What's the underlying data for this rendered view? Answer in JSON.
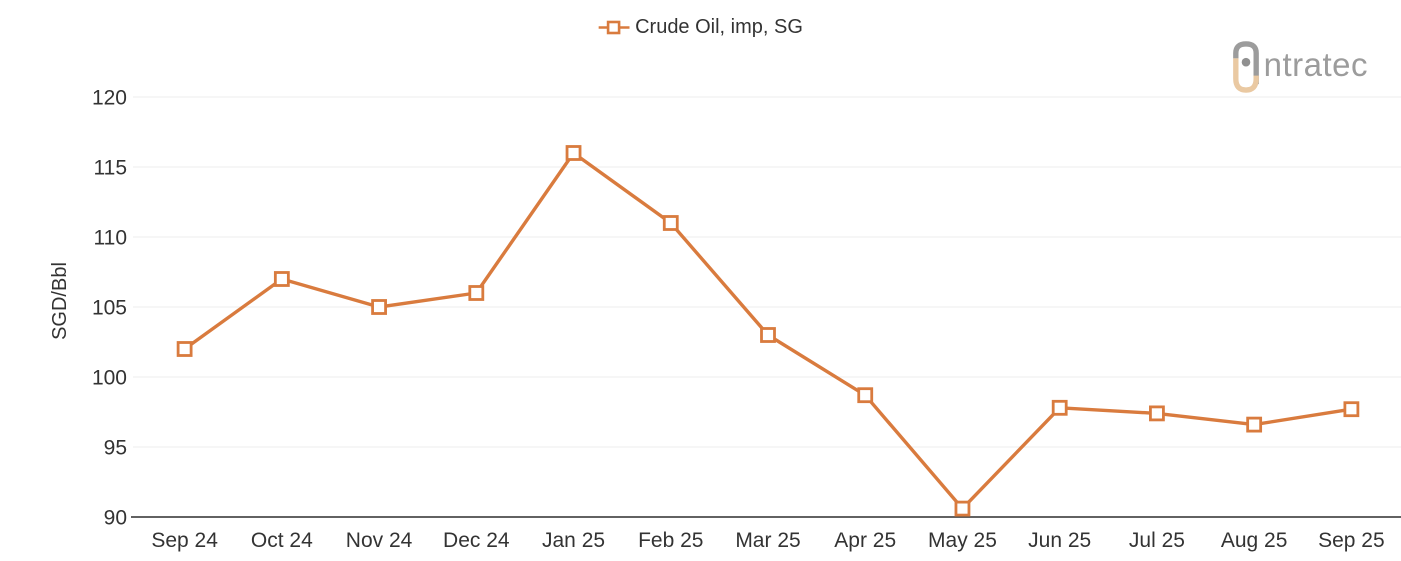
{
  "legend": {
    "label": "Crude Oil, imp, SG"
  },
  "logo": {
    "brand": "intratec",
    "text": "ntratec"
  },
  "chart_data": {
    "type": "line",
    "title": "",
    "categories": [
      "Sep 24",
      "Oct 24",
      "Nov 24",
      "Dec 24",
      "Jan 25",
      "Feb 25",
      "Mar 25",
      "Apr 25",
      "May 25",
      "Jun 25",
      "Jul 25",
      "Aug 25",
      "Sep 25"
    ],
    "series": [
      {
        "name": "Crude Oil, imp, SG",
        "values": [
          102,
          107,
          105,
          106,
          116,
          111,
          103,
          98.7,
          90.6,
          97.8,
          97.4,
          96.6,
          97.7
        ],
        "color": "#d97b3e",
        "marker": "open-square"
      }
    ],
    "xlabel": "",
    "ylabel": "SGD/Bbl",
    "ylim": [
      90,
      120
    ],
    "yticks": [
      90,
      95,
      100,
      105,
      110,
      115,
      120
    ],
    "grid": "horizontal-gridlines",
    "legend_position": "top-center"
  },
  "colors": {
    "series_line": "#d97b3e",
    "marker_fill": "#ffffff",
    "grid_line": "#f0f0f0",
    "axis_line": "#4c4c4c",
    "tick_text": "#333333",
    "logo_gray": "#9c9c9c",
    "logo_tan": "#eac9a2",
    "background": "#ffffff"
  }
}
